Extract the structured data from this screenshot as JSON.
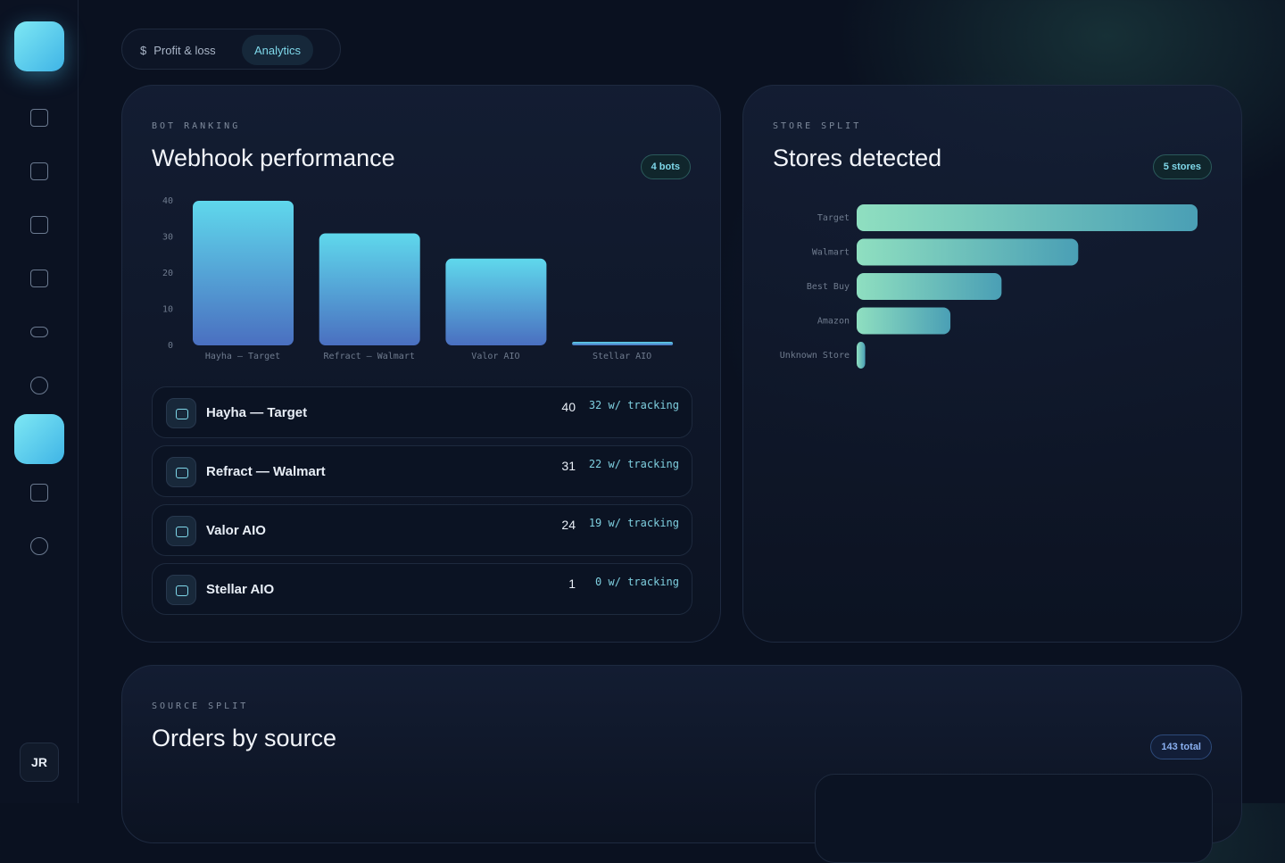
{
  "nav": {
    "avatar": "JR"
  },
  "tabs": [
    {
      "label": "Profit & loss",
      "icon": "$"
    },
    {
      "label": "Analytics"
    }
  ],
  "cards": [
    {
      "eyebrow": "BOT RANKING",
      "title": "Webhook performance",
      "badge": "4 bots",
      "rows": [
        {
          "name": "Hayha — Target",
          "tracking": 32
        },
        {
          "name": "Refract — Walmart",
          "tracking": 22
        },
        {
          "name": "Valor AIO",
          "tracking": 19
        },
        {
          "name": "Stellar AIO",
          "tracking": 0
        }
      ],
      "tracking_label": "w/ tracking"
    },
    {
      "eyebrow": "STORE SPLIT",
      "title": "Stores detected",
      "badge": "5 stores"
    },
    {
      "eyebrow": "SOURCE SPLIT",
      "title": "Orders by source",
      "badge": "143 total"
    }
  ],
  "chart_data": [
    {
      "type": "bar",
      "categories": [
        "Hayha — Target",
        "Refract — Walmart",
        "Valor AIO",
        "Stellar AIO"
      ],
      "values": [
        40,
        31,
        24,
        1
      ],
      "ylim": [
        0,
        40
      ],
      "yticks": [
        0,
        10,
        20,
        30,
        40
      ],
      "color": "#5fd8ec"
    },
    {
      "type": "hbar",
      "categories": [
        "Target",
        "Walmart",
        "Best Buy",
        "Amazon",
        "Unknown Store"
      ],
      "values": [
        40,
        26,
        17,
        11,
        1
      ],
      "xlim": [
        0,
        40
      ],
      "color": "#8fdfc0"
    }
  ]
}
